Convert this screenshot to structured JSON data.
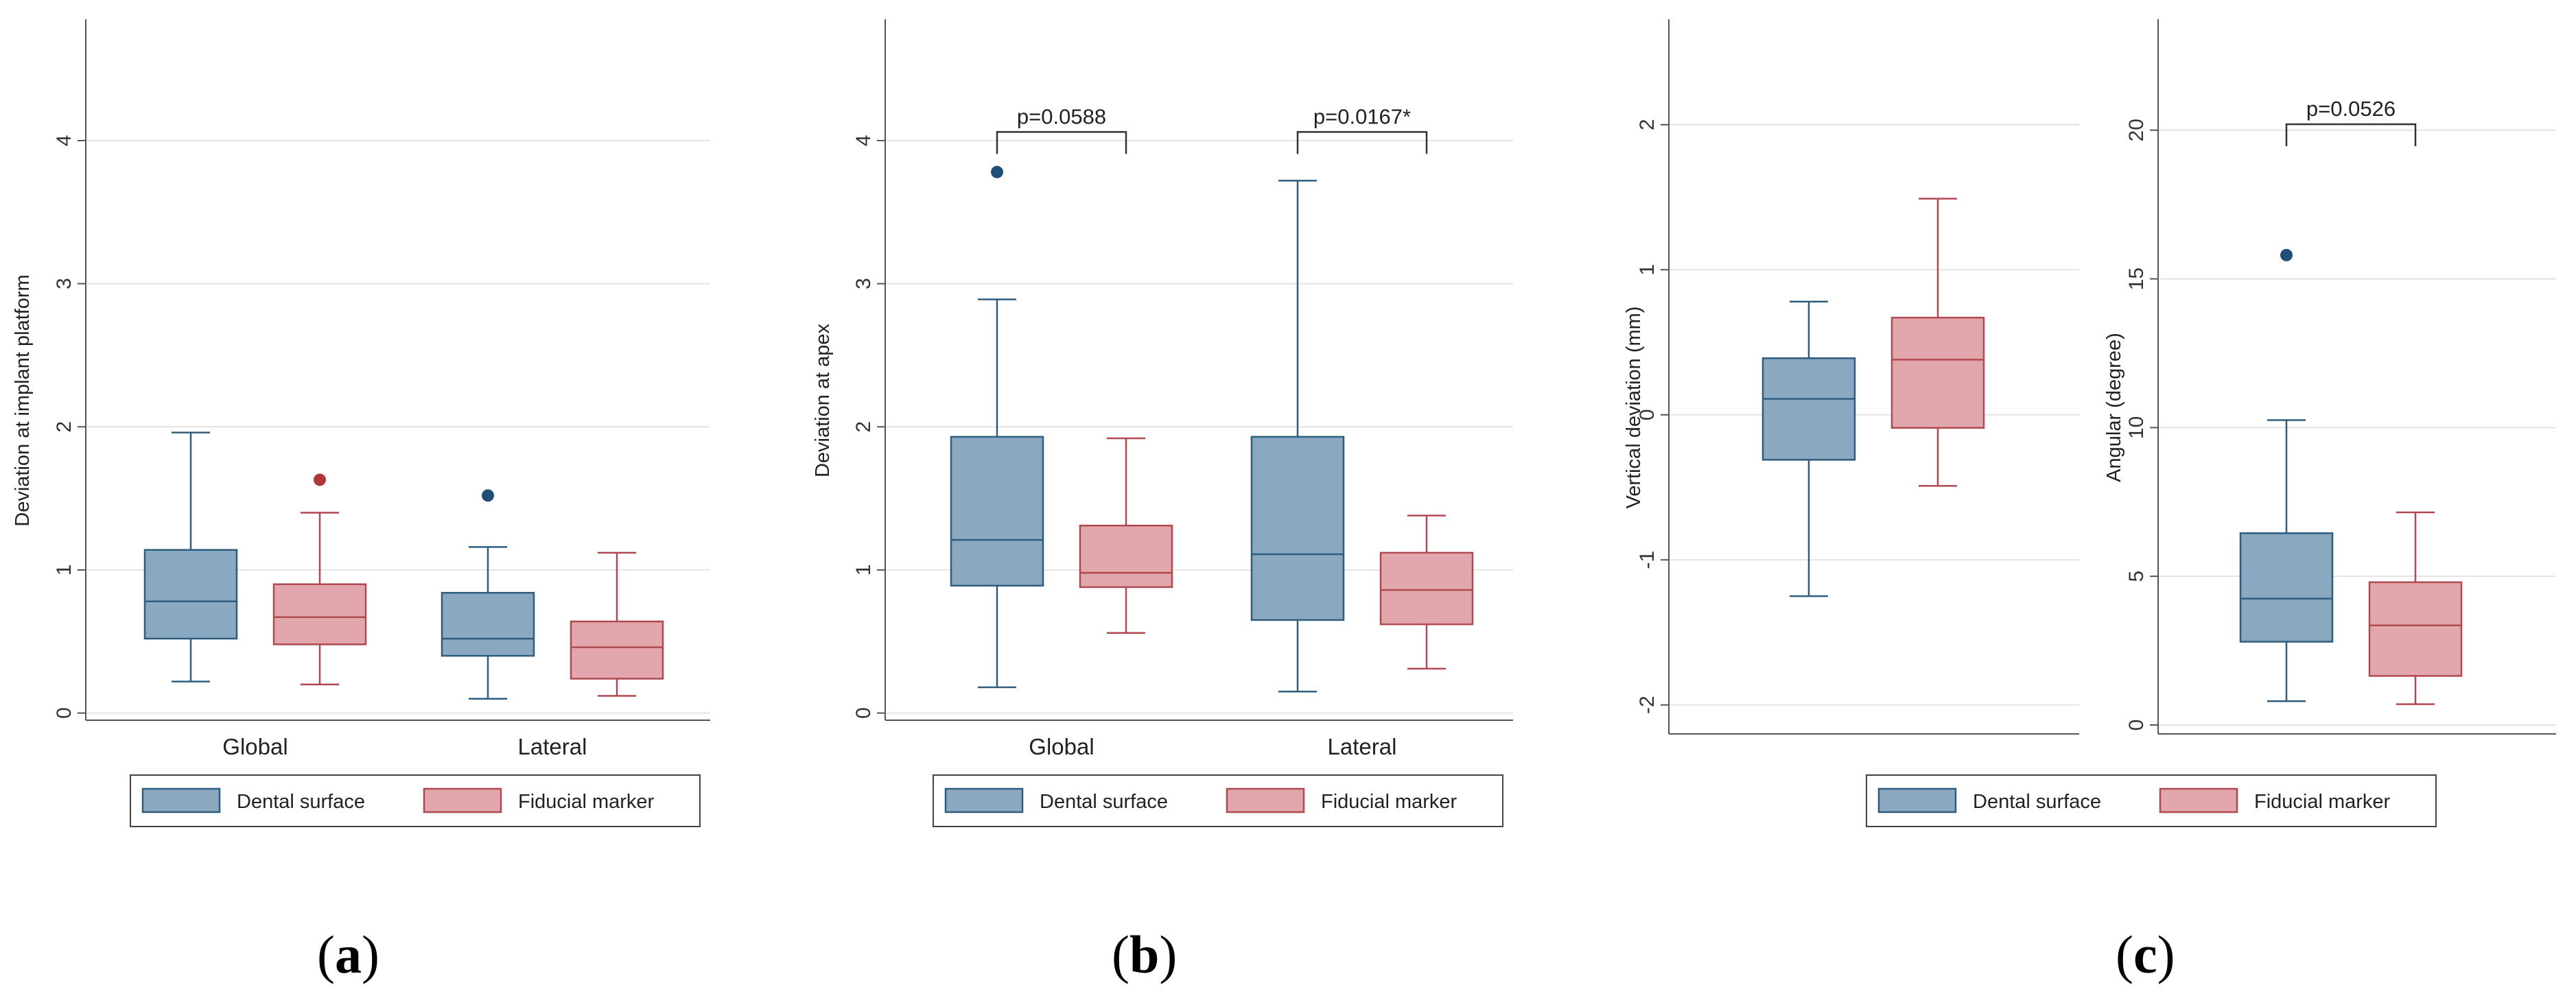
{
  "colors": {
    "dental_fill": "#8aa9c0",
    "dental_line": "#2e5d80",
    "fiducial_fill": "#e2a7ad",
    "fiducial_line": "#b2484f",
    "grid": "#e4e4e4",
    "axis": "#555555",
    "outlier_dental": "#1f4e79",
    "outlier_fiducial": "#b0363c"
  },
  "legend": {
    "dental": "Dental surface",
    "fiducial": "Fiducial marker"
  },
  "panel_labels": {
    "a": "a",
    "b": "b",
    "c": "c",
    "open": "(",
    "close": ")"
  },
  "chart_data": [
    {
      "id": "a",
      "type": "box",
      "ylabel": "Deviation at implant platform",
      "ylim": [
        -0.05,
        4.8
      ],
      "yticks": [
        0,
        1,
        2,
        3,
        4
      ],
      "yticklabels": [
        "0",
        "1",
        "2",
        "3",
        "4"
      ],
      "grid": true,
      "categories": [
        "Global",
        "Lateral"
      ],
      "series": [
        {
          "name": "Dental surface",
          "boxes": [
            {
              "category": "Global",
              "whisker_low": 0.22,
              "q1": 0.52,
              "median": 0.78,
              "q3": 1.14,
              "whisker_high": 1.96,
              "outliers": []
            },
            {
              "category": "Lateral",
              "whisker_low": 0.1,
              "q1": 0.4,
              "median": 0.52,
              "q3": 0.84,
              "whisker_high": 1.16,
              "outliers": [
                1.52
              ]
            }
          ]
        },
        {
          "name": "Fiducial marker",
          "boxes": [
            {
              "category": "Global",
              "whisker_low": 0.2,
              "q1": 0.48,
              "median": 0.67,
              "q3": 0.9,
              "whisker_high": 1.4,
              "outliers": [
                1.63
              ]
            },
            {
              "category": "Lateral",
              "whisker_low": 0.12,
              "q1": 0.24,
              "median": 0.46,
              "q3": 0.64,
              "whisker_high": 1.12,
              "outliers": []
            }
          ]
        }
      ],
      "annotations": []
    },
    {
      "id": "b",
      "type": "box",
      "ylabel": "Deviation at apex",
      "ylim": [
        -0.05,
        4.8
      ],
      "yticks": [
        0,
        1,
        2,
        3,
        4
      ],
      "yticklabels": [
        "0",
        "1",
        "2",
        "3",
        "4"
      ],
      "grid": true,
      "categories": [
        "Global",
        "Lateral"
      ],
      "series": [
        {
          "name": "Dental surface",
          "boxes": [
            {
              "category": "Global",
              "whisker_low": 0.18,
              "q1": 0.89,
              "median": 1.21,
              "q3": 1.93,
              "whisker_high": 2.89,
              "outliers": [
                3.78
              ]
            },
            {
              "category": "Lateral",
              "whisker_low": 0.15,
              "q1": 0.65,
              "median": 1.11,
              "q3": 1.93,
              "whisker_high": 3.72,
              "outliers": []
            }
          ]
        },
        {
          "name": "Fiducial marker",
          "boxes": [
            {
              "category": "Global",
              "whisker_low": 0.56,
              "q1": 0.88,
              "median": 0.98,
              "q3": 1.31,
              "whisker_high": 1.92,
              "outliers": []
            },
            {
              "category": "Lateral",
              "whisker_low": 0.31,
              "q1": 0.62,
              "median": 0.86,
              "q3": 1.12,
              "whisker_high": 1.38,
              "outliers": []
            }
          ]
        }
      ],
      "annotations": [
        {
          "category": "Global",
          "y": 4.06,
          "text": "p=0.0588"
        },
        {
          "category": "Lateral",
          "y": 4.06,
          "text": "p=0.0167*"
        }
      ]
    },
    {
      "id": "c-vertical",
      "type": "box",
      "ylabel": "Vertical deviation (mm)",
      "ylim": [
        -2.2,
        2.68
      ],
      "yticks": [
        -2,
        -1,
        0,
        1,
        2
      ],
      "yticklabels": [
        "-2",
        "-1",
        "0",
        "1",
        "2"
      ],
      "grid": true,
      "categories": [
        ""
      ],
      "series": [
        {
          "name": "Dental surface",
          "boxes": [
            {
              "category": "",
              "whisker_low": -1.25,
              "q1": -0.31,
              "median": 0.11,
              "q3": 0.39,
              "whisker_high": 0.78,
              "outliers": []
            }
          ]
        },
        {
          "name": "Fiducial marker",
          "boxes": [
            {
              "category": "",
              "whisker_low": -0.49,
              "q1": -0.09,
              "median": 0.38,
              "q3": 0.67,
              "whisker_high": 1.49,
              "outliers": []
            }
          ]
        }
      ],
      "annotations": []
    },
    {
      "id": "c-angular",
      "type": "box",
      "ylabel": "Angular (degree)",
      "ylim": [
        -0.3,
        23.5
      ],
      "yticks": [
        0,
        5,
        10,
        15,
        20
      ],
      "yticklabels": [
        "0",
        "5",
        "10",
        "15",
        "20"
      ],
      "grid": true,
      "categories": [
        ""
      ],
      "series": [
        {
          "name": "Dental surface",
          "boxes": [
            {
              "category": "",
              "whisker_low": 0.8,
              "q1": 2.8,
              "median": 4.25,
              "q3": 6.45,
              "whisker_high": 10.25,
              "outliers": [
                15.8
              ]
            }
          ]
        },
        {
          "name": "Fiducial marker",
          "boxes": [
            {
              "category": "",
              "whisker_low": 0.7,
              "q1": 1.65,
              "median": 3.35,
              "q3": 4.8,
              "whisker_high": 7.15,
              "outliers": []
            }
          ]
        }
      ],
      "annotations": [
        {
          "category": "",
          "y": 20.2,
          "text": "p=0.0526"
        }
      ]
    }
  ]
}
